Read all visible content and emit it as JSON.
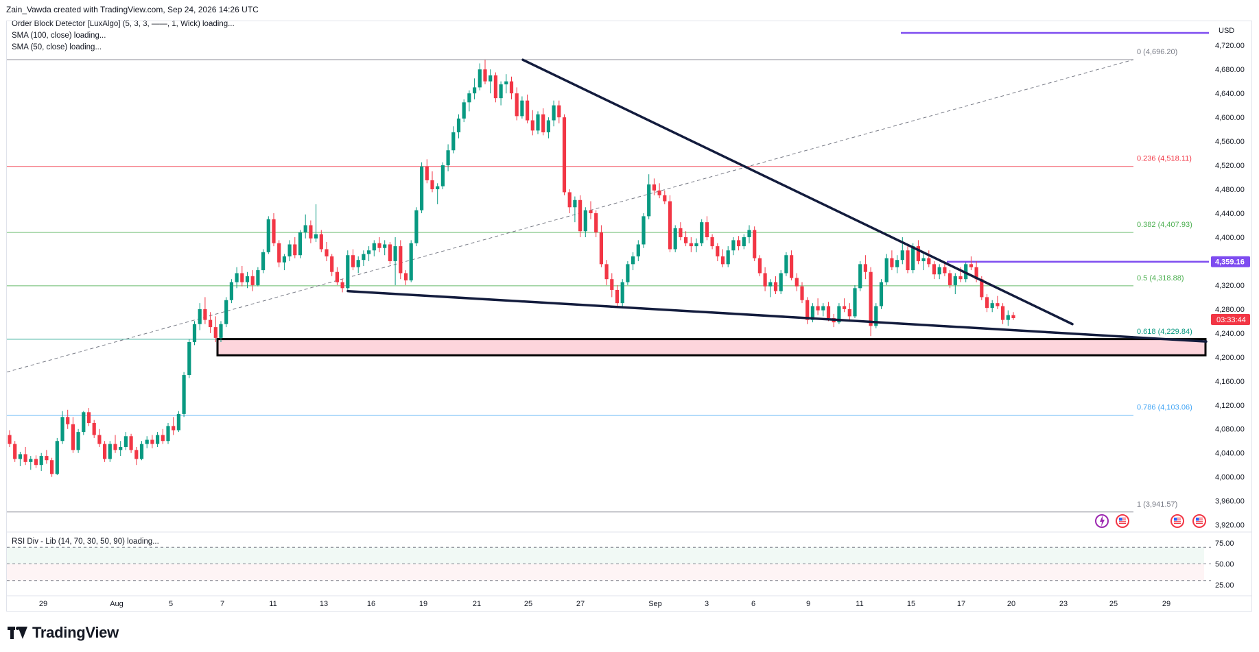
{
  "header": {
    "attribution": "Zain_Vawda created with TradingView.com, Sep 24, 2026 14:26 UTC"
  },
  "indicators": {
    "order_block": "Order Block Detector [LuxAlgo] (5, 3, 3, ——, 1, Wick) loading...",
    "sma100": "SMA (100, close) loading...",
    "sma50": "SMA (50, close) loading...",
    "rsi": "RSI Div - Lib (14, 70, 30, 50, 90) loading..."
  },
  "currency": "USD",
  "logo_text": "TradingView",
  "colors": {
    "up": "#089981",
    "down": "#f23645",
    "trendline": "#131c3d",
    "resistance": "#7e4cf0",
    "order_block_fill": "#fdd5dc",
    "fib_0_236": "#f23645",
    "fib_0_382": "#4caf50",
    "fib_0_5": "#4caf50",
    "fib_0_618": "#089981",
    "fib_0_786": "#42a5f5",
    "fib_edge": "#787b86"
  },
  "chart_data": {
    "type": "candlestick",
    "ylim": [
      3915,
      4750
    ],
    "y_ticks": [
      "4,720.00",
      "4,680.00",
      "4,640.00",
      "4,600.00",
      "4,560.00",
      "4,520.00",
      "4,480.00",
      "4,440.00",
      "4,400.00",
      "4,360.00",
      "4,320.00",
      "4,280.00",
      "4,240.00",
      "4,200.00",
      "4,160.00",
      "4,120.00",
      "4,080.00",
      "4,040.00",
      "4,000.00",
      "3,960.00",
      "3,920.00"
    ],
    "x_ticks": [
      "29",
      "Aug",
      "5",
      "7",
      "11",
      "13",
      "16",
      "19",
      "21",
      "25",
      "27",
      "Sep",
      "3",
      "6",
      "9",
      "11",
      "15",
      "17",
      "20",
      "23",
      "25",
      "29"
    ],
    "fib_levels": [
      {
        "level": "0",
        "label": "0 (4,696.20)",
        "value": 4696.2
      },
      {
        "level": "0.236",
        "label": "0.236 (4,518.11)",
        "value": 4518.11
      },
      {
        "level": "0.382",
        "label": "0.382 (4,407.93)",
        "value": 4407.93
      },
      {
        "level": "0.5",
        "label": "0.5 (4,318.88)",
        "value": 4318.88
      },
      {
        "level": "0.618",
        "label": "0.618 (4,229.84)",
        "value": 4229.84
      },
      {
        "level": "0.786",
        "label": "0.786 (4,103.06)",
        "value": 4103.06
      },
      {
        "level": "1",
        "label": "1 (3,941.57)",
        "value": 3941.57
      }
    ],
    "price_marker": {
      "value": 4359.16,
      "label": "4,359.16"
    },
    "countdown": "03:33:44",
    "order_block": {
      "top": 4230,
      "bottom": 4203
    },
    "rsi": {
      "ticks": [
        "75.00",
        "50.00",
        "25.00"
      ],
      "levels": [
        70,
        50,
        30
      ],
      "ylim": [
        15,
        85
      ]
    },
    "candles_ohlc": [
      [
        4070,
        4078,
        4050,
        4055
      ],
      [
        4055,
        4060,
        4025,
        4030
      ],
      [
        4030,
        4042,
        4018,
        4038
      ],
      [
        4038,
        4050,
        4020,
        4025
      ],
      [
        4025,
        4035,
        4012,
        4030
      ],
      [
        4030,
        4036,
        4015,
        4020
      ],
      [
        4020,
        4040,
        4010,
        4035
      ],
      [
        4035,
        4045,
        4022,
        4028
      ],
      [
        4028,
        4032,
        4000,
        4005
      ],
      [
        4005,
        4065,
        4003,
        4060
      ],
      [
        4060,
        4110,
        4055,
        4100
      ],
      [
        4100,
        4112,
        4080,
        4088
      ],
      [
        4088,
        4100,
        4040,
        4045
      ],
      [
        4045,
        4080,
        4040,
        4075
      ],
      [
        4075,
        4110,
        4070,
        4108
      ],
      [
        4108,
        4115,
        4085,
        4090
      ],
      [
        4090,
        4095,
        4065,
        4070
      ],
      [
        4070,
        4080,
        4050,
        4055
      ],
      [
        4055,
        4060,
        4025,
        4030
      ],
      [
        4030,
        4060,
        4025,
        4055
      ],
      [
        4055,
        4070,
        4040,
        4045
      ],
      [
        4045,
        4060,
        4035,
        4050
      ],
      [
        4050,
        4075,
        4045,
        4068
      ],
      [
        4068,
        4072,
        4040,
        4045
      ],
      [
        4045,
        4050,
        4020,
        4030
      ],
      [
        4030,
        4060,
        4028,
        4055
      ],
      [
        4055,
        4068,
        4048,
        4062
      ],
      [
        4062,
        4070,
        4048,
        4055
      ],
      [
        4055,
        4075,
        4050,
        4070
      ],
      [
        4070,
        4080,
        4055,
        4060
      ],
      [
        4060,
        4090,
        4055,
        4085
      ],
      [
        4085,
        4100,
        4070,
        4078
      ],
      [
        4078,
        4110,
        4075,
        4105
      ],
      [
        4105,
        4175,
        4100,
        4170
      ],
      [
        4170,
        4230,
        4165,
        4225
      ],
      [
        4225,
        4260,
        4220,
        4255
      ],
      [
        4255,
        4290,
        4245,
        4280
      ],
      [
        4280,
        4300,
        4255,
        4262
      ],
      [
        4262,
        4275,
        4240,
        4250
      ],
      [
        4250,
        4268,
        4225,
        4232
      ],
      [
        4232,
        4260,
        4225,
        4255
      ],
      [
        4255,
        4300,
        4250,
        4295
      ],
      [
        4295,
        4330,
        4290,
        4325
      ],
      [
        4325,
        4350,
        4315,
        4340
      ],
      [
        4340,
        4352,
        4318,
        4325
      ],
      [
        4325,
        4342,
        4315,
        4335
      ],
      [
        4335,
        4345,
        4310,
        4320
      ],
      [
        4320,
        4350,
        4318,
        4345
      ],
      [
        4345,
        4380,
        4340,
        4375
      ],
      [
        4375,
        4435,
        4372,
        4430
      ],
      [
        4430,
        4440,
        4385,
        4390
      ],
      [
        4390,
        4395,
        4350,
        4358
      ],
      [
        4358,
        4372,
        4345,
        4368
      ],
      [
        4368,
        4395,
        4360,
        4388
      ],
      [
        4388,
        4400,
        4365,
        4370
      ],
      [
        4370,
        4412,
        4365,
        4408
      ],
      [
        4408,
        4438,
        4398,
        4420
      ],
      [
        4420,
        4428,
        4390,
        4398
      ],
      [
        4398,
        4455,
        4392,
        4405
      ],
      [
        4405,
        4412,
        4375,
        4380
      ],
      [
        4380,
        4392,
        4360,
        4368
      ],
      [
        4368,
        4372,
        4335,
        4342
      ],
      [
        4342,
        4350,
        4320,
        4325
      ],
      [
        4325,
        4330,
        4308,
        4315
      ],
      [
        4315,
        4378,
        4312,
        4370
      ],
      [
        4370,
        4380,
        4345,
        4350
      ],
      [
        4350,
        4368,
        4340,
        4362
      ],
      [
        4362,
        4378,
        4352,
        4372
      ],
      [
        4372,
        4385,
        4360,
        4378
      ],
      [
        4378,
        4395,
        4368,
        4390
      ],
      [
        4390,
        4400,
        4375,
        4382
      ],
      [
        4382,
        4395,
        4370,
        4388
      ],
      [
        4388,
        4392,
        4355,
        4360
      ],
      [
        4360,
        4400,
        4320,
        4385
      ],
      [
        4385,
        4395,
        4330,
        4340
      ],
      [
        4340,
        4345,
        4320,
        4328
      ],
      [
        4328,
        4395,
        4325,
        4390
      ],
      [
        4390,
        4450,
        4385,
        4445
      ],
      [
        4445,
        4525,
        4440,
        4518
      ],
      [
        4518,
        4530,
        4490,
        4495
      ],
      [
        4495,
        4510,
        4475,
        4480
      ],
      [
        4480,
        4490,
        4455,
        4485
      ],
      [
        4485,
        4525,
        4480,
        4520
      ],
      [
        4520,
        4555,
        4510,
        4545
      ],
      [
        4545,
        4585,
        4540,
        4575
      ],
      [
        4575,
        4605,
        4565,
        4598
      ],
      [
        4598,
        4630,
        4592,
        4625
      ],
      [
        4625,
        4645,
        4610,
        4640
      ],
      [
        4640,
        4665,
        4630,
        4650
      ],
      [
        4650,
        4690,
        4645,
        4680
      ],
      [
        4680,
        4696,
        4655,
        4660
      ],
      [
        4660,
        4680,
        4640,
        4670
      ],
      [
        4670,
        4675,
        4625,
        4632
      ],
      [
        4632,
        4660,
        4620,
        4655
      ],
      [
        4655,
        4672,
        4640,
        4660
      ],
      [
        4660,
        4668,
        4630,
        4640
      ],
      [
        4640,
        4650,
        4595,
        4602
      ],
      [
        4602,
        4635,
        4598,
        4628
      ],
      [
        4628,
        4638,
        4590,
        4595
      ],
      [
        4595,
        4612,
        4570,
        4578
      ],
      [
        4578,
        4610,
        4572,
        4605
      ],
      [
        4605,
        4615,
        4570,
        4575
      ],
      [
        4575,
        4600,
        4565,
        4595
      ],
      [
        4595,
        4628,
        4585,
        4620
      ],
      [
        4620,
        4628,
        4590,
        4600
      ],
      [
        4600,
        4605,
        4470,
        4475
      ],
      [
        4475,
        4480,
        4440,
        4450
      ],
      [
        4450,
        4468,
        4425,
        4462
      ],
      [
        4462,
        4470,
        4400,
        4410
      ],
      [
        4410,
        4450,
        4400,
        4445
      ],
      [
        4445,
        4460,
        4430,
        4440
      ],
      [
        4440,
        4445,
        4400,
        4408
      ],
      [
        4408,
        4420,
        4350,
        4355
      ],
      [
        4355,
        4362,
        4320,
        4330
      ],
      [
        4330,
        4340,
        4300,
        4312
      ],
      [
        4312,
        4320,
        4285,
        4290
      ],
      [
        4290,
        4330,
        4285,
        4325
      ],
      [
        4325,
        4360,
        4320,
        4355
      ],
      [
        4355,
        4375,
        4345,
        4368
      ],
      [
        4368,
        4395,
        4360,
        4388
      ],
      [
        4388,
        4440,
        4382,
        4435
      ],
      [
        4435,
        4505,
        4430,
        4488
      ],
      [
        4488,
        4498,
        4470,
        4478
      ],
      [
        4478,
        4490,
        4465,
        4470
      ],
      [
        4470,
        4478,
        4455,
        4460
      ],
      [
        4460,
        4470,
        4375,
        4380
      ],
      [
        4380,
        4420,
        4375,
        4415
      ],
      [
        4415,
        4425,
        4395,
        4400
      ],
      [
        4400,
        4410,
        4385,
        4390
      ],
      [
        4390,
        4400,
        4375,
        4385
      ],
      [
        4385,
        4398,
        4375,
        4390
      ],
      [
        4390,
        4430,
        4385,
        4425
      ],
      [
        4425,
        4435,
        4395,
        4400
      ],
      [
        4400,
        4405,
        4380,
        4385
      ],
      [
        4385,
        4390,
        4360,
        4368
      ],
      [
        4368,
        4380,
        4350,
        4355
      ],
      [
        4355,
        4385,
        4350,
        4378
      ],
      [
        4378,
        4400,
        4370,
        4395
      ],
      [
        4395,
        4402,
        4378,
        4385
      ],
      [
        4385,
        4405,
        4380,
        4400
      ],
      [
        4400,
        4420,
        4390,
        4412
      ],
      [
        4412,
        4418,
        4360,
        4365
      ],
      [
        4365,
        4370,
        4335,
        4340
      ],
      [
        4340,
        4350,
        4310,
        4318
      ],
      [
        4318,
        4330,
        4300,
        4325
      ],
      [
        4325,
        4335,
        4305,
        4310
      ],
      [
        4310,
        4345,
        4305,
        4340
      ],
      [
        4340,
        4375,
        4335,
        4370
      ],
      [
        4370,
        4378,
        4328,
        4332
      ],
      [
        4332,
        4340,
        4310,
        4318
      ],
      [
        4318,
        4325,
        4290,
        4295
      ],
      [
        4295,
        4300,
        4255,
        4262
      ],
      [
        4262,
        4290,
        4258,
        4285
      ],
      [
        4285,
        4298,
        4270,
        4278
      ],
      [
        4278,
        4290,
        4268,
        4285
      ],
      [
        4285,
        4292,
        4260,
        4265
      ],
      [
        4265,
        4272,
        4250,
        4258
      ],
      [
        4258,
        4290,
        4255,
        4285
      ],
      [
        4285,
        4298,
        4275,
        4280
      ],
      [
        4280,
        4290,
        4262,
        4268
      ],
      [
        4268,
        4320,
        4265,
        4315
      ],
      [
        4315,
        4360,
        4310,
        4355
      ],
      [
        4355,
        4370,
        4330,
        4342
      ],
      [
        4342,
        4350,
        4235,
        4252
      ],
      [
        4252,
        4290,
        4248,
        4285
      ],
      [
        4285,
        4330,
        4280,
        4325
      ],
      [
        4325,
        4372,
        4320,
        4365
      ],
      [
        4365,
        4378,
        4345,
        4350
      ],
      [
        4350,
        4370,
        4340,
        4362
      ],
      [
        4362,
        4400,
        4355,
        4378
      ],
      [
        4378,
        4385,
        4340,
        4345
      ],
      [
        4345,
        4390,
        4340,
        4385
      ],
      [
        4385,
        4395,
        4355,
        4360
      ],
      [
        4360,
        4372,
        4345,
        4365
      ],
      [
        4365,
        4378,
        4350,
        4355
      ],
      [
        4355,
        4360,
        4330,
        4338
      ],
      [
        4338,
        4355,
        4330,
        4350
      ],
      [
        4350,
        4358,
        4335,
        4340
      ],
      [
        4340,
        4345,
        4315,
        4320
      ],
      [
        4320,
        4340,
        4305,
        4335
      ],
      [
        4335,
        4350,
        4325,
        4330
      ],
      [
        4330,
        4358,
        4325,
        4355
      ],
      [
        4355,
        4368,
        4345,
        4350
      ],
      [
        4350,
        4360,
        4325,
        4330
      ],
      [
        4330,
        4335,
        4295,
        4300
      ],
      [
        4300,
        4305,
        4275,
        4282
      ],
      [
        4282,
        4295,
        4275,
        4290
      ],
      [
        4290,
        4302,
        4280,
        4285
      ],
      [
        4285,
        4290,
        4255,
        4262
      ],
      [
        4262,
        4278,
        4252,
        4270
      ],
      [
        4270,
        4275,
        4262,
        4265
      ]
    ]
  }
}
